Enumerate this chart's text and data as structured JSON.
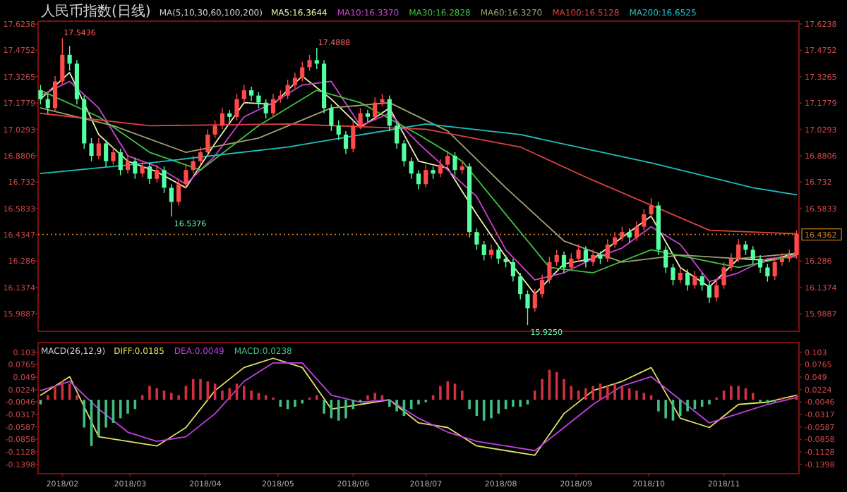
{
  "chart_data": [
    {
      "type": "candlestick",
      "title": "人民币指数(日线)",
      "legend_title": "MA(5,10,30,60,100,200)",
      "legend": "top",
      "tick_labels": "y",
      "x": [
        "2018-01-23",
        "2018-01-26",
        "2018-01-29",
        "2018-02-01",
        "2018-02-04",
        "2018-02-07",
        "2018-02-10",
        "2018-02-13",
        "2018-02-16",
        "2018-02-19",
        "2018-02-22",
        "2018-02-25",
        "2018-02-28",
        "2018-03-03",
        "2018-03-06",
        "2018-03-09",
        "2018-03-12",
        "2018-03-15",
        "2018-03-18",
        "2018-03-21",
        "2018-03-24",
        "2018-03-27",
        "2018-03-30",
        "2018-04-02",
        "2018-04-05",
        "2018-04-08",
        "2018-04-11",
        "2018-04-14",
        "2018-04-17",
        "2018-04-20",
        "2018-04-23",
        "2018-04-26",
        "2018-04-29",
        "2018-05-02",
        "2018-05-05",
        "2018-05-08",
        "2018-05-11",
        "2018-05-14",
        "2018-05-17",
        "2018-05-20",
        "2018-05-23",
        "2018-05-26",
        "2018-05-29",
        "2018-06-01",
        "2018-06-04",
        "2018-06-07",
        "2018-06-10",
        "2018-06-13",
        "2018-06-16",
        "2018-06-19",
        "2018-06-22",
        "2018-06-25",
        "2018-06-28",
        "2018-07-01",
        "2018-07-04",
        "2018-07-07",
        "2018-07-10",
        "2018-07-13",
        "2018-07-16",
        "2018-07-19",
        "2018-07-22",
        "2018-07-25",
        "2018-07-28",
        "2018-07-31",
        "2018-08-03",
        "2018-08-06",
        "2018-08-09",
        "2018-08-12",
        "2018-08-15",
        "2018-08-18",
        "2018-08-21",
        "2018-08-24",
        "2018-08-27",
        "2018-08-30",
        "2018-09-02",
        "2018-09-05",
        "2018-09-08",
        "2018-09-11",
        "2018-09-14",
        "2018-09-17",
        "2018-09-20",
        "2018-09-23",
        "2018-09-26",
        "2018-09-29",
        "2018-10-02",
        "2018-10-05",
        "2018-10-08",
        "2018-10-11",
        "2018-10-14",
        "2018-10-17",
        "2018-10-20",
        "2018-10-23",
        "2018-10-26",
        "2018-10-29",
        "2018-11-01",
        "2018-11-04",
        "2018-11-07",
        "2018-11-10",
        "2018-11-13",
        "2018-11-16",
        "2018-11-19",
        "2018-11-22",
        "2018-11-25",
        "2018-11-28",
        "2018-12-01"
      ],
      "ohlc": [
        [
          17.25,
          17.28,
          17.17,
          17.2
        ],
        [
          17.2,
          17.23,
          17.12,
          17.15
        ],
        [
          17.15,
          17.33,
          17.13,
          17.3
        ],
        [
          17.3,
          17.5436,
          17.28,
          17.45
        ],
        [
          17.45,
          17.5,
          17.36,
          17.4
        ],
        [
          17.4,
          17.42,
          17.17,
          17.2
        ],
        [
          17.2,
          17.22,
          16.92,
          16.95
        ],
        [
          16.95,
          16.98,
          16.85,
          16.88
        ],
        [
          16.88,
          16.98,
          16.86,
          16.95
        ],
        [
          16.95,
          16.97,
          16.82,
          16.85
        ],
        [
          16.85,
          16.93,
          16.83,
          16.9
        ],
        [
          16.9,
          16.92,
          16.77,
          16.8
        ],
        [
          16.8,
          16.88,
          16.78,
          16.85
        ],
        [
          16.85,
          16.87,
          16.75,
          16.78
        ],
        [
          16.78,
          16.85,
          16.76,
          16.82
        ],
        [
          16.82,
          16.84,
          16.72,
          16.75
        ],
        [
          16.75,
          16.83,
          16.73,
          16.8
        ],
        [
          16.8,
          16.82,
          16.67,
          16.7
        ],
        [
          16.7,
          16.72,
          16.5376,
          16.62
        ],
        [
          16.62,
          16.75,
          16.6,
          16.72
        ],
        [
          16.72,
          16.83,
          16.7,
          16.8
        ],
        [
          16.8,
          16.88,
          16.78,
          16.85
        ],
        [
          16.85,
          16.93,
          16.83,
          16.9
        ],
        [
          16.9,
          17.03,
          16.88,
          17.0
        ],
        [
          17.0,
          17.08,
          16.98,
          17.05
        ],
        [
          17.05,
          17.15,
          17.03,
          17.12
        ],
        [
          17.12,
          17.14,
          17.07,
          17.1
        ],
        [
          17.1,
          17.23,
          17.08,
          17.2
        ],
        [
          17.2,
          17.28,
          17.18,
          17.25
        ],
        [
          17.25,
          17.27,
          17.19,
          17.22
        ],
        [
          17.22,
          17.24,
          17.15,
          17.18
        ],
        [
          17.18,
          17.2,
          17.09,
          17.12
        ],
        [
          17.12,
          17.23,
          17.1,
          17.2
        ],
        [
          17.2,
          17.25,
          17.18,
          17.22
        ],
        [
          17.22,
          17.31,
          17.2,
          17.28
        ],
        [
          17.28,
          17.35,
          17.26,
          17.32
        ],
        [
          17.32,
          17.41,
          17.3,
          17.38
        ],
        [
          17.38,
          17.45,
          17.36,
          17.42
        ],
        [
          17.42,
          17.4888,
          17.37,
          17.4
        ],
        [
          17.4,
          17.42,
          17.12,
          17.15
        ],
        [
          17.15,
          17.17,
          17.02,
          17.05
        ],
        [
          17.05,
          17.08,
          16.97,
          17.0
        ],
        [
          17.0,
          17.02,
          16.89,
          16.92
        ],
        [
          16.92,
          17.08,
          16.9,
          17.05
        ],
        [
          17.05,
          17.15,
          17.03,
          17.12
        ],
        [
          17.12,
          17.14,
          17.07,
          17.1
        ],
        [
          17.1,
          17.21,
          17.08,
          17.18
        ],
        [
          17.18,
          17.23,
          17.16,
          17.2
        ],
        [
          17.2,
          17.22,
          17.02,
          17.05
        ],
        [
          17.05,
          17.07,
          16.92,
          16.95
        ],
        [
          16.95,
          16.97,
          16.82,
          16.85
        ],
        [
          16.85,
          16.87,
          16.75,
          16.78
        ],
        [
          16.78,
          16.8,
          16.69,
          16.72
        ],
        [
          16.72,
          16.83,
          16.7,
          16.8
        ],
        [
          16.8,
          16.82,
          16.75,
          16.78
        ],
        [
          16.78,
          16.86,
          16.76,
          16.83
        ],
        [
          16.83,
          16.91,
          16.81,
          16.88
        ],
        [
          16.88,
          16.9,
          16.77,
          16.8
        ],
        [
          16.8,
          16.85,
          16.78,
          16.82
        ],
        [
          16.82,
          16.84,
          16.42,
          16.45
        ],
        [
          16.45,
          16.47,
          16.35,
          16.38
        ],
        [
          16.38,
          16.4,
          16.29,
          16.32
        ],
        [
          16.32,
          16.38,
          16.3,
          16.35
        ],
        [
          16.35,
          16.37,
          16.27,
          16.3
        ],
        [
          16.3,
          16.32,
          16.25,
          16.28
        ],
        [
          16.28,
          16.3,
          16.17,
          16.2
        ],
        [
          16.2,
          16.22,
          16.07,
          16.1
        ],
        [
          16.1,
          16.12,
          15.925,
          16.02
        ],
        [
          16.02,
          16.13,
          16.0,
          16.1
        ],
        [
          16.1,
          16.21,
          16.08,
          16.18
        ],
        [
          16.18,
          16.31,
          16.16,
          16.28
        ],
        [
          16.28,
          16.35,
          16.26,
          16.32
        ],
        [
          16.32,
          16.34,
          16.22,
          16.25
        ],
        [
          16.25,
          16.33,
          16.23,
          16.3
        ],
        [
          16.3,
          16.38,
          16.28,
          16.35
        ],
        [
          16.35,
          16.37,
          16.25,
          16.28
        ],
        [
          16.28,
          16.35,
          16.26,
          16.32
        ],
        [
          16.32,
          16.34,
          16.27,
          16.3
        ],
        [
          16.3,
          16.41,
          16.28,
          16.38
        ],
        [
          16.38,
          16.45,
          16.36,
          16.42
        ],
        [
          16.42,
          16.48,
          16.4,
          16.45
        ],
        [
          16.45,
          16.47,
          16.39,
          16.42
        ],
        [
          16.42,
          16.51,
          16.4,
          16.48
        ],
        [
          16.48,
          16.58,
          16.46,
          16.55
        ],
        [
          16.55,
          16.64,
          16.53,
          16.6
        ],
        [
          16.6,
          16.62,
          16.32,
          16.35
        ],
        [
          16.35,
          16.37,
          16.22,
          16.25
        ],
        [
          16.25,
          16.27,
          16.15,
          16.18
        ],
        [
          16.18,
          16.25,
          16.16,
          16.22
        ],
        [
          16.22,
          16.24,
          16.12,
          16.15
        ],
        [
          16.15,
          16.23,
          16.13,
          16.2
        ],
        [
          16.2,
          16.22,
          16.12,
          16.15
        ],
        [
          16.15,
          16.17,
          16.05,
          16.08
        ],
        [
          16.08,
          16.18,
          16.06,
          16.15
        ],
        [
          16.15,
          16.28,
          16.13,
          16.25
        ],
        [
          16.25,
          16.33,
          16.23,
          16.3
        ],
        [
          16.3,
          16.41,
          16.28,
          16.38
        ],
        [
          16.38,
          16.4,
          16.32,
          16.35
        ],
        [
          16.35,
          16.37,
          16.27,
          16.3
        ],
        [
          16.3,
          16.32,
          16.22,
          16.25
        ],
        [
          16.25,
          16.27,
          16.17,
          16.2
        ],
        [
          16.2,
          16.31,
          16.18,
          16.28
        ],
        [
          16.28,
          16.33,
          16.26,
          16.3
        ],
        [
          16.3,
          16.35,
          16.28,
          16.32
        ],
        [
          16.32,
          16.46,
          16.3,
          16.44
        ]
      ],
      "colors": [
        "#54ffa0",
        "#54ffa0",
        "#ff4a4a",
        "#ff4a4a",
        "#54ffa0",
        "#54ffa0",
        "#54ffa0",
        "#54ffa0",
        "#ff4a4a",
        "#54ffa0",
        "#ff4a4a",
        "#54ffa0",
        "#ff4a4a",
        "#54ffa0",
        "#ff4a4a",
        "#54ffa0",
        "#ff4a4a",
        "#54ffa0",
        "#54ffa0",
        "#ff4a4a",
        "#ff4a4a",
        "#ff4a4a",
        "#ff4a4a",
        "#ff4a4a",
        "#ff4a4a",
        "#ff4a4a",
        "#54ffa0",
        "#ff4a4a",
        "#ff4a4a",
        "#54ffa0",
        "#54ffa0",
        "#54ffa0",
        "#ff4a4a",
        "#ff4a4a",
        "#ff4a4a",
        "#ff4a4a",
        "#ff4a4a",
        "#ff4a4a",
        "#54ffa0",
        "#54ffa0",
        "#54ffa0",
        "#54ffa0",
        "#54ffa0",
        "#ff4a4a",
        "#ff4a4a",
        "#54ffa0",
        "#ff4a4a",
        "#ff4a4a",
        "#54ffa0",
        "#54ffa0",
        "#54ffa0",
        "#54ffa0",
        "#54ffa0",
        "#ff4a4a",
        "#54ffa0",
        "#ff4a4a",
        "#ff4a4a",
        "#54ffa0",
        "#ff4a4a",
        "#54ffa0",
        "#54ffa0",
        "#54ffa0",
        "#ff4a4a",
        "#54ffa0",
        "#54ffa0",
        "#54ffa0",
        "#54ffa0",
        "#54ffa0",
        "#ff4a4a",
        "#ff4a4a",
        "#ff4a4a",
        "#ff4a4a",
        "#54ffa0",
        "#ff4a4a",
        "#ff4a4a",
        "#54ffa0",
        "#ff4a4a",
        "#54ffa0",
        "#ff4a4a",
        "#ff4a4a",
        "#ff4a4a",
        "#54ffa0",
        "#ff4a4a",
        "#ff4a4a",
        "#ff4a4a",
        "#54ffa0",
        "#54ffa0",
        "#54ffa0",
        "#ff4a4a",
        "#54ffa0",
        "#ff4a4a",
        "#54ffa0",
        "#54ffa0",
        "#ff4a4a",
        "#ff4a4a",
        "#ff4a4a",
        "#ff4a4a",
        "#54ffa0",
        "#54ffa0",
        "#54ffa0",
        "#54ffa0",
        "#ff4a4a",
        "#ff4a4a",
        "#ff4a4a",
        "#ff4a4a"
      ],
      "series": [
        {
          "name": "MA5:16.3644",
          "type": "line",
          "color": "#f0f0b0",
          "x": [
            "2018-01-23",
            "2018-02-04",
            "2018-02-16",
            "2018-02-28",
            "2018-03-12",
            "2018-03-24",
            "2018-04-05",
            "2018-04-17",
            "2018-04-29",
            "2018-05-11",
            "2018-05-23",
            "2018-06-04",
            "2018-06-16",
            "2018-06-28",
            "2018-07-10",
            "2018-07-22",
            "2018-08-03",
            "2018-08-15",
            "2018-08-27",
            "2018-09-08",
            "2018-09-20",
            "2018-10-02",
            "2018-10-14",
            "2018-10-26",
            "2018-11-07",
            "2018-11-19",
            "2018-12-01"
          ],
          "values": [
            17.2,
            17.35,
            17.0,
            16.85,
            16.79,
            16.7,
            16.95,
            17.18,
            17.17,
            17.33,
            17.2,
            17.04,
            17.15,
            16.85,
            16.81,
            16.55,
            16.31,
            16.1,
            16.27,
            16.3,
            16.42,
            16.54,
            16.25,
            16.14,
            16.3,
            16.29,
            16.33
          ]
        },
        {
          "name": "MA10:16.3370",
          "type": "line",
          "color": "#d040d0",
          "x": [
            "2018-01-23",
            "2018-02-04",
            "2018-02-16",
            "2018-02-28",
            "2018-03-12",
            "2018-03-24",
            "2018-04-05",
            "2018-04-17",
            "2018-04-29",
            "2018-05-11",
            "2018-05-23",
            "2018-06-04",
            "2018-06-16",
            "2018-06-28",
            "2018-07-10",
            "2018-07-22",
            "2018-08-03",
            "2018-08-15",
            "2018-08-27",
            "2018-09-08",
            "2018-09-20",
            "2018-10-02",
            "2018-10-14",
            "2018-10-26",
            "2018-11-07",
            "2018-11-19",
            "2018-12-01"
          ],
          "values": [
            17.22,
            17.3,
            17.15,
            16.88,
            16.82,
            16.72,
            16.88,
            17.1,
            17.18,
            17.28,
            17.3,
            17.05,
            17.12,
            16.95,
            16.8,
            16.65,
            16.35,
            16.18,
            16.22,
            16.3,
            16.36,
            16.48,
            16.38,
            16.17,
            16.22,
            16.3,
            16.31
          ]
        },
        {
          "name": "MA30:16.2828",
          "type": "line",
          "color": "#40c040",
          "x": [
            "2018-01-23",
            "2018-02-16",
            "2018-03-09",
            "2018-03-30",
            "2018-04-23",
            "2018-05-17",
            "2018-06-04",
            "2018-06-28",
            "2018-07-16",
            "2018-08-03",
            "2018-08-21",
            "2018-09-08",
            "2018-10-02",
            "2018-10-20",
            "2018-11-07",
            "2018-12-01"
          ],
          "values": [
            17.25,
            17.1,
            16.9,
            16.8,
            17.05,
            17.25,
            17.18,
            17.0,
            16.85,
            16.55,
            16.25,
            16.22,
            16.35,
            16.3,
            16.25,
            16.32
          ]
        },
        {
          "name": "MA60:16.3270",
          "type": "line",
          "color": "#a0a070",
          "x": [
            "2018-01-23",
            "2018-02-22",
            "2018-03-24",
            "2018-04-23",
            "2018-05-23",
            "2018-06-16",
            "2018-07-10",
            "2018-08-03",
            "2018-08-27",
            "2018-09-20",
            "2018-10-14",
            "2018-11-07",
            "2018-12-01"
          ],
          "values": [
            17.15,
            17.05,
            16.9,
            16.98,
            17.15,
            17.18,
            17.02,
            16.7,
            16.4,
            16.28,
            16.32,
            16.3,
            16.33
          ]
        },
        {
          "name": "MA100:16.5128",
          "type": "line",
          "color": "#e04040",
          "x": [
            "2018-01-23",
            "2018-03-09",
            "2018-05-05",
            "2018-07-01",
            "2018-08-09",
            "2018-09-05",
            "2018-10-26",
            "2018-12-01"
          ],
          "values": [
            17.12,
            17.05,
            17.06,
            17.03,
            16.93,
            16.76,
            16.46,
            16.44
          ]
        },
        {
          "name": "MA200:16.6525",
          "type": "line",
          "color": "#20c0c0",
          "x": [
            "2018-01-23",
            "2018-03-09",
            "2018-05-05",
            "2018-07-01",
            "2018-08-09",
            "2018-10-02",
            "2018-11-13",
            "2018-12-01"
          ],
          "values": [
            16.78,
            16.84,
            16.93,
            17.06,
            17.0,
            16.84,
            16.7,
            16.66
          ]
        }
      ],
      "xlim": [
        "2018-01-22",
        "2018-12-02"
      ],
      "ylim": [
        15.89,
        17.64
      ],
      "yticks": [
        17.6238,
        17.4752,
        17.3265,
        17.1779,
        17.0293,
        16.8806,
        16.732,
        16.5833,
        16.4347,
        16.286,
        16.1374,
        15.9887
      ],
      "y2lim": [
        15.89,
        17.64
      ],
      "y2ticks": [
        17.6238,
        17.4752,
        17.3265,
        17.1779,
        17.0293,
        16.8806,
        16.732,
        16.5833,
        16.286,
        16.1374,
        15.9887
      ],
      "ref_lines": [
        {
          "axis": "y",
          "value": 16.4362,
          "label": "16.4362",
          "color": "#d08020",
          "line_style": "dotted"
        }
      ],
      "annotations": [
        {
          "text": "17.5436",
          "x": "2018-02-01",
          "y": 17.5436
        },
        {
          "text": "17.4888",
          "x": "2018-05-17",
          "y": 17.4888
        },
        {
          "text": "16.5376",
          "x": "2018-03-18",
          "y": 16.5376
        },
        {
          "text": "15.9250",
          "x": "2018-08-12",
          "y": 15.925
        }
      ]
    },
    {
      "type": "bar",
      "legend_title": "MACD(26,12,9)",
      "legend": "top left",
      "x": [
        "2018-01-23",
        "2018-01-26",
        "2018-01-29",
        "2018-02-01",
        "2018-02-04",
        "2018-02-07",
        "2018-02-10",
        "2018-02-13",
        "2018-02-16",
        "2018-02-19",
        "2018-02-22",
        "2018-02-25",
        "2018-02-28",
        "2018-03-03",
        "2018-03-06",
        "2018-03-09",
        "2018-03-12",
        "2018-03-15",
        "2018-03-18",
        "2018-03-21",
        "2018-03-24",
        "2018-03-27",
        "2018-03-30",
        "2018-04-02",
        "2018-04-05",
        "2018-04-08",
        "2018-04-11",
        "2018-04-14",
        "2018-04-17",
        "2018-04-20",
        "2018-04-23",
        "2018-04-26",
        "2018-04-29",
        "2018-05-02",
        "2018-05-05",
        "2018-05-08",
        "2018-05-11",
        "2018-05-14",
        "2018-05-17",
        "2018-05-20",
        "2018-05-23",
        "2018-05-26",
        "2018-05-29",
        "2018-06-01",
        "2018-06-04",
        "2018-06-07",
        "2018-06-10",
        "2018-06-13",
        "2018-06-16",
        "2018-06-19",
        "2018-06-22",
        "2018-06-25",
        "2018-06-28",
        "2018-07-01",
        "2018-07-04",
        "2018-07-07",
        "2018-07-10",
        "2018-07-13",
        "2018-07-16",
        "2018-07-19",
        "2018-07-22",
        "2018-07-25",
        "2018-07-28",
        "2018-07-31",
        "2018-08-03",
        "2018-08-06",
        "2018-08-09",
        "2018-08-12",
        "2018-08-15",
        "2018-08-18",
        "2018-08-21",
        "2018-08-24",
        "2018-08-27",
        "2018-08-30",
        "2018-09-02",
        "2018-09-05",
        "2018-09-08",
        "2018-09-11",
        "2018-09-14",
        "2018-09-17",
        "2018-09-20",
        "2018-09-23",
        "2018-09-26",
        "2018-09-29",
        "2018-10-02",
        "2018-10-05",
        "2018-10-08",
        "2018-10-11",
        "2018-10-14",
        "2018-10-17",
        "2018-10-20",
        "2018-10-23",
        "2018-10-26",
        "2018-10-29",
        "2018-11-01",
        "2018-11-04",
        "2018-11-07",
        "2018-11-10",
        "2018-11-13",
        "2018-11-16",
        "2018-11-19",
        "2018-11-22",
        "2018-11-25",
        "2018-11-28",
        "2018-12-01"
      ],
      "xlim": [
        "2018-01-22",
        "2018-12-02"
      ],
      "xticks": [
        {
          "value": "2018-02-01",
          "label": "2018/02"
        },
        {
          "value": "2018-03-01",
          "label": "2018/03"
        },
        {
          "value": "2018-04-01",
          "label": "2018/04"
        },
        {
          "value": "2018-05-01",
          "label": "2018/05"
        },
        {
          "value": "2018-06-01",
          "label": "2018/06"
        },
        {
          "value": "2018-07-01",
          "label": "2018/07"
        },
        {
          "value": "2018-08-01",
          "label": "2018/08"
        },
        {
          "value": "2018-09-01",
          "label": "2018/09"
        },
        {
          "value": "2018-10-01",
          "label": "2018/10"
        },
        {
          "value": "2018-11-01",
          "label": "2018/11"
        }
      ],
      "ylim": [
        -0.16,
        0.124
      ],
      "yticks": [
        0.103,
        0.0765,
        0.049,
        0.0224,
        -0.0046,
        -0.0317,
        -0.0587,
        -0.0858,
        -0.1128,
        -0.1398
      ],
      "y2lim": [
        -0.16,
        0.124
      ],
      "y2ticks": [
        0.103,
        0.0765,
        0.049,
        0.0224,
        -0.0046,
        -0.0317,
        -0.0587,
        -0.0858,
        -0.1128,
        -0.1398
      ],
      "series": [
        {
          "name": "DIFF:0.0185",
          "type": "line",
          "color": "#e0e060",
          "x": [
            "2018-01-23",
            "2018-02-04",
            "2018-02-16",
            "2018-02-28",
            "2018-03-12",
            "2018-03-24",
            "2018-04-05",
            "2018-04-17",
            "2018-04-29",
            "2018-05-11",
            "2018-05-23",
            "2018-06-04",
            "2018-06-16",
            "2018-06-28",
            "2018-07-10",
            "2018-07-22",
            "2018-08-03",
            "2018-08-15",
            "2018-08-27",
            "2018-09-08",
            "2018-09-20",
            "2018-10-02",
            "2018-10-14",
            "2018-10-26",
            "2018-11-07",
            "2018-11-19",
            "2018-12-01"
          ],
          "values": [
            0.01,
            0.05,
            -0.08,
            -0.09,
            -0.1,
            -0.06,
            0.02,
            0.07,
            0.09,
            0.07,
            -0.02,
            -0.01,
            0.0,
            -0.05,
            -0.06,
            -0.1,
            -0.11,
            -0.12,
            -0.03,
            0.02,
            0.04,
            0.07,
            -0.04,
            -0.06,
            -0.01,
            -0.005,
            0.01
          ]
        },
        {
          "name": "DEA:0.0049",
          "type": "line",
          "color": "#c040e0",
          "x": [
            "2018-01-23",
            "2018-02-04",
            "2018-02-16",
            "2018-02-28",
            "2018-03-12",
            "2018-03-24",
            "2018-04-05",
            "2018-04-17",
            "2018-04-29",
            "2018-05-11",
            "2018-05-23",
            "2018-06-04",
            "2018-06-16",
            "2018-06-28",
            "2018-07-10",
            "2018-07-22",
            "2018-08-03",
            "2018-08-15",
            "2018-08-27",
            "2018-09-08",
            "2018-09-20",
            "2018-10-02",
            "2018-10-14",
            "2018-10-26",
            "2018-11-07",
            "2018-11-19",
            "2018-12-01"
          ],
          "values": [
            0.02,
            0.04,
            -0.02,
            -0.07,
            -0.09,
            -0.08,
            -0.03,
            0.04,
            0.08,
            0.08,
            0.01,
            -0.005,
            0.0,
            -0.04,
            -0.07,
            -0.09,
            -0.1,
            -0.11,
            -0.06,
            -0.01,
            0.03,
            0.05,
            0.0,
            -0.05,
            -0.03,
            -0.01,
            0.005
          ]
        },
        {
          "name": "MACD:0.0238",
          "type": "bar",
          "color": "#40c080",
          "colors": [
            "#40c080",
            "#d03040",
            "#d03040",
            "#d03040",
            "#d03040",
            "#d03040",
            "#40c080",
            "#40c080",
            "#40c080",
            "#40c080",
            "#40c080",
            "#40c080",
            "#40c080",
            "#40c080",
            "#d03040",
            "#d03040",
            "#d03040",
            "#d03040",
            "#d03040",
            "#d03040",
            "#d03040",
            "#d03040",
            "#d03040",
            "#d03040",
            "#d03040",
            "#d03040",
            "#d03040",
            "#d03040",
            "#d03040",
            "#d03040",
            "#d03040",
            "#d03040",
            "#d03040",
            "#40c080",
            "#40c080",
            "#40c080",
            "#40c080",
            "#d03040",
            "#d03040",
            "#40c080",
            "#40c080",
            "#40c080",
            "#40c080",
            "#40c080",
            "#40c080",
            "#d03040",
            "#d03040",
            "#d03040",
            "#40c080",
            "#40c080",
            "#40c080",
            "#40c080",
            "#40c080",
            "#40c080",
            "#d03040",
            "#d03040",
            "#d03040",
            "#d03040",
            "#d03040",
            "#40c080",
            "#40c080",
            "#40c080",
            "#40c080",
            "#40c080",
            "#40c080",
            "#40c080",
            "#40c080",
            "#40c080",
            "#d03040",
            "#d03040",
            "#d03040",
            "#d03040",
            "#d03040",
            "#d03040",
            "#d03040",
            "#d03040",
            "#d03040",
            "#d03040",
            "#d03040",
            "#d03040",
            "#d03040",
            "#d03040",
            "#d03040",
            "#d03040",
            "#d03040",
            "#40c080",
            "#40c080",
            "#40c080",
            "#40c080",
            "#40c080",
            "#40c080",
            "#40c080",
            "#40c080",
            "#d03040",
            "#d03040",
            "#d03040",
            "#d03040",
            "#d03040",
            "#d03040",
            "#40c080",
            "#40c080",
            "#40c080",
            "#d03040",
            "#d03040",
            "#d03040"
          ],
          "values": [
            -0.01,
            0.01,
            0.03,
            0.04,
            0.035,
            0.01,
            -0.06,
            -0.1,
            -0.08,
            -0.06,
            -0.05,
            -0.04,
            -0.03,
            -0.02,
            0.01,
            0.03,
            0.025,
            0.02,
            0.015,
            0.01,
            0.03,
            0.045,
            0.045,
            0.04,
            0.035,
            0.02,
            0.025,
            0.035,
            0.03,
            0.02,
            0.015,
            0.01,
            0.005,
            -0.015,
            -0.02,
            -0.015,
            -0.008,
            0.005,
            0.01,
            -0.03,
            -0.04,
            -0.045,
            -0.04,
            -0.02,
            -0.005,
            0.01,
            0.015,
            0.01,
            -0.015,
            -0.025,
            -0.035,
            -0.02,
            -0.01,
            -0.005,
            0.01,
            0.03,
            0.04,
            0.035,
            0.02,
            -0.02,
            -0.035,
            -0.045,
            -0.04,
            -0.03,
            -0.02,
            -0.015,
            -0.015,
            -0.01,
            0.02,
            0.045,
            0.065,
            0.06,
            0.045,
            0.03,
            0.02,
            0.025,
            0.03,
            0.035,
            0.03,
            0.035,
            0.03,
            0.025,
            0.02,
            0.015,
            0.01,
            -0.025,
            -0.04,
            -0.045,
            -0.035,
            -0.025,
            -0.02,
            -0.015,
            -0.01,
            0.005,
            0.02,
            0.03,
            0.03,
            0.025,
            0.015,
            -0.005,
            -0.008,
            -0.005,
            0.003,
            0.006,
            0.01
          ]
        }
      ]
    }
  ]
}
